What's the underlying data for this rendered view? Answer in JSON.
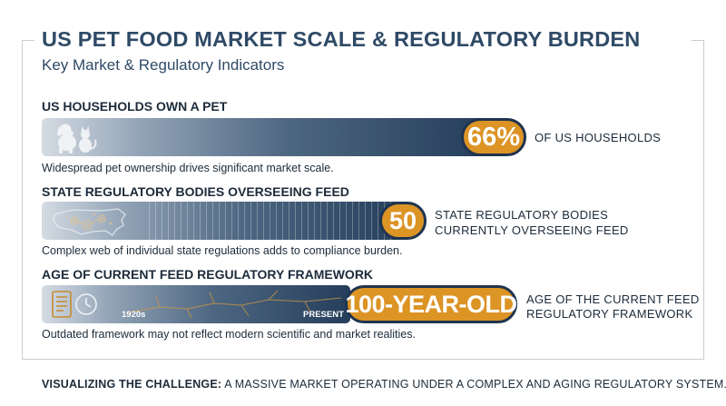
{
  "title": "US PET FOOD MARKET SCALE & REGULATORY BURDEN",
  "subtitle": "Key Market & Regulatory Indicators",
  "colors": {
    "accent": "#dc9425",
    "navy": "#253e5b",
    "title": "#2f4a66"
  },
  "chart_data": {
    "type": "bar",
    "title": "US PET FOOD MARKET SCALE & REGULATORY BURDEN",
    "indicators": [
      {
        "heading": "US HOUSEHOLDS OWN A PET",
        "value": 66,
        "value_label": "66%",
        "unit_label": "OF US HOUSEHOLDS",
        "description": "Widespread pet ownership drives significant market scale.",
        "icon": "pets-icon"
      },
      {
        "heading": "STATE REGULATORY BODIES OVERSEEING FEED",
        "value": 50,
        "value_label": "50",
        "unit_label_lines": [
          "STATE REGULATORY BODIES",
          "CURRENTLY OVERSEEING FEED"
        ],
        "description": "Complex web of individual state regulations adds to compliance burden.",
        "icon": "us-map-gears-icon"
      },
      {
        "heading": "AGE OF CURRENT FEED REGULATORY FRAMEWORK",
        "value": 100,
        "value_label": "100-YEAR-OLD",
        "unit_label_lines": [
          "AGE OF THE CURRENT FEED",
          "REGULATORY FRAMEWORK"
        ],
        "description": "Outdated framework may not reflect modern scientific and market realities.",
        "timeline": {
          "start": "1920s",
          "end": "PRESENT"
        },
        "icon": "scroll-clock-icon"
      }
    ]
  },
  "footer": {
    "bold": "VISUALIZING THE CHALLENGE:",
    "text": " A MASSIVE MARKET OPERATING UNDER A COMPLEX AND AGING REGULATORY SYSTEM."
  }
}
